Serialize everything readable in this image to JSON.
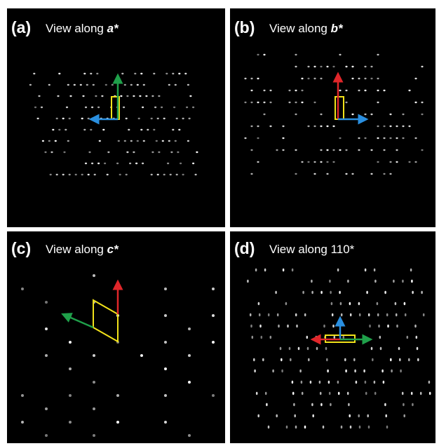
{
  "panels": [
    {
      "label": "(a)",
      "caption": "View along",
      "axis": "a*"
    },
    {
      "label": "(b)",
      "caption": "View along",
      "axis": "b*"
    },
    {
      "label": "(c)",
      "caption": "View along",
      "axis": "c*"
    },
    {
      "label": "(d)",
      "caption": "View along 110*"
    }
  ]
}
